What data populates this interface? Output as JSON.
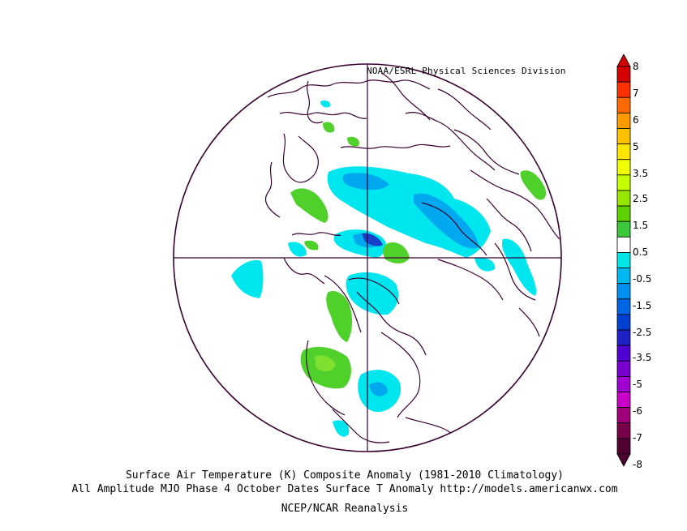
{
  "credit": "NOAA/ESRL Physical Sciences Division",
  "title_line1": "Surface Air Temperature (K) Composite Anomaly (1981-2010 Climatology)",
  "title_line2": "All Amplitude MJO Phase 4 October Dates Surface T Anomaly http://models.americanwx.com",
  "title_line3": "NCEP/NCAR Reanalysis",
  "colorbar": {
    "labels": [
      "8",
      "7",
      "6",
      "5",
      "3.5",
      "2.5",
      "1.5",
      "0.5",
      "-0.5",
      "-1.5",
      "-2.5",
      "-3.5",
      "-5",
      "-6",
      "-7",
      "-8"
    ],
    "colors": [
      "#d40000",
      "#ff3000",
      "#ff6a00",
      "#ff9a00",
      "#ffc000",
      "#ffe600",
      "#f0ff00",
      "#c4ff00",
      "#96e600",
      "#5ed200",
      "#3cc83c",
      "#ffffff",
      "#00e6e6",
      "#00b8f0",
      "#0090f0",
      "#0064e6",
      "#0040d2",
      "#2020c8",
      "#5000d2",
      "#7a00d2",
      "#a000d2",
      "#c800c8",
      "#a0007a",
      "#78004a",
      "#500030"
    ]
  },
  "colors": {
    "warm_anomaly": "#4fd02a",
    "cool_anomaly": "#00e6ee",
    "cold_anomaly": "#00a8f0",
    "very_cold_anomaly": "#1840c8",
    "coastline": "#3a0030"
  }
}
